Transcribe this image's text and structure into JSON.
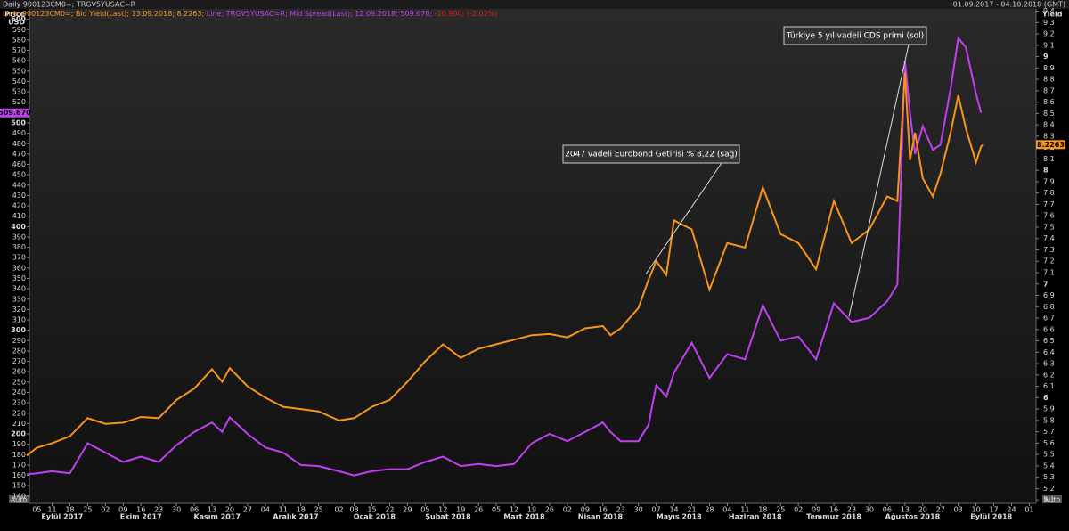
{
  "chart_data": {
    "type": "line",
    "header": "Daily 900123CM0=; TRGV5YUSAC=R",
    "range_text": "01.09.2017 - 04.10.2018 (GMT)",
    "legend_parts": [
      {
        "text": "Line; 900123CM0=; Bid Yield(Last); 13.09.2018; 8.2263; ",
        "color": "#f7941d"
      },
      {
        "text": "Line; TRGV5YUSAC=R; Mid Spread(Last); 12.09.2018; 509.670; ",
        "color": "#c040f0"
      },
      {
        "text": "-10.900; (-2.02%)",
        "color": "#e02020"
      }
    ],
    "y_label": [
      "Price",
      "USD"
    ],
    "y2_label": "Yield",
    "auto_label": "Auto",
    "annotations": [
      {
        "text": "Türkiye 5 yıl vadeli CDS primi (sol)",
        "series": 0,
        "point": 51
      },
      {
        "text": "2047 vadeli Eurobond Getirisi % 8,22 (sağ)",
        "series": 1,
        "point": 38
      }
    ],
    "xlim": [
      "2017-09-01",
      "2018-10-04"
    ],
    "x": [
      "2017-09-01",
      "2017-09-05",
      "2017-09-11",
      "2017-09-18",
      "2017-09-25",
      "2017-10-02",
      "2017-10-09",
      "2017-10-16",
      "2017-10-23",
      "2017-10-30",
      "2017-11-06",
      "2017-11-13",
      "2017-11-17",
      "2017-11-20",
      "2017-11-27",
      "2017-12-04",
      "2017-12-11",
      "2017-12-18",
      "2017-12-25",
      "2018-01-02",
      "2018-01-08",
      "2018-01-15",
      "2018-01-22",
      "2018-01-29",
      "2018-02-05",
      "2018-02-12",
      "2018-02-19",
      "2018-02-26",
      "2018-03-05",
      "2018-03-12",
      "2018-03-19",
      "2018-03-26",
      "2018-04-02",
      "2018-04-09",
      "2018-04-16",
      "2018-04-19",
      "2018-04-23",
      "2018-04-30",
      "2018-05-04",
      "2018-05-07",
      "2018-05-11",
      "2018-05-14",
      "2018-05-21",
      "2018-05-28",
      "2018-06-04",
      "2018-06-11",
      "2018-06-18",
      "2018-06-25",
      "2018-07-02",
      "2018-07-09",
      "2018-07-16",
      "2018-07-23",
      "2018-07-30",
      "2018-08-06",
      "2018-08-10",
      "2018-08-13",
      "2018-08-15",
      "2018-08-17",
      "2018-08-20",
      "2018-08-24",
      "2018-08-27",
      "2018-08-31",
      "2018-09-03",
      "2018-09-06",
      "2018-09-10",
      "2018-09-12",
      "2018-09-13"
    ],
    "series": [
      {
        "name": "TRGV5YUSAC=R",
        "color": "#c040f0",
        "last_label": "509.670",
        "values": [
          161,
          162,
          164,
          162,
          191,
          182,
          173,
          178,
          173,
          189,
          202,
          211,
          202,
          216,
          200,
          187,
          182,
          170,
          169,
          164,
          160,
          164,
          166,
          166,
          173,
          178,
          169,
          171,
          169,
          171,
          191,
          200,
          193,
          202,
          211,
          202,
          193,
          193,
          209,
          247,
          236,
          259,
          288,
          254,
          277,
          272,
          324,
          290,
          294,
          272,
          326,
          308,
          312,
          328,
          344,
          560,
          510,
          470,
          497,
          474,
          479,
          533,
          582,
          573,
          528,
          509.67,
          null
        ]
      },
      {
        "name": "900123CM0=",
        "color": "#f7941d",
        "axis": "y2",
        "last_label": "8.2263",
        "values": [
          5.49,
          5.56,
          5.6,
          5.66,
          5.82,
          5.77,
          5.78,
          5.83,
          5.82,
          5.98,
          6.08,
          6.25,
          6.14,
          6.26,
          6.1,
          6,
          5.92,
          5.9,
          5.88,
          5.8,
          5.82,
          5.92,
          5.98,
          6.14,
          6.32,
          6.47,
          6.35,
          6.43,
          6.47,
          6.51,
          6.55,
          6.56,
          6.53,
          6.61,
          6.63,
          6.55,
          6.61,
          6.79,
          7.04,
          7.2,
          7.08,
          7.56,
          7.48,
          6.95,
          7.36,
          7.32,
          7.85,
          7.44,
          7.36,
          7.13,
          7.73,
          7.36,
          7.48,
          7.77,
          7.73,
          8.86,
          8.09,
          8.33,
          7.93,
          7.77,
          7.97,
          8.33,
          8.66,
          8.37,
          8.07,
          8.21,
          8.2263
        ]
      }
    ],
    "ylim": [
      133,
      610
    ],
    "yticks": [
      140,
      150,
      160,
      170,
      180,
      190,
      200,
      210,
      220,
      230,
      240,
      250,
      260,
      270,
      280,
      290,
      300,
      310,
      320,
      330,
      340,
      350,
      360,
      370,
      380,
      390,
      400,
      410,
      420,
      430,
      440,
      450,
      460,
      470,
      480,
      490,
      500,
      510,
      520,
      530,
      540,
      550,
      560,
      570,
      580,
      590,
      600
    ],
    "y2lim": [
      5.07,
      9.42
    ],
    "y2ticks": [
      5.1,
      5.2,
      5.3,
      5.4,
      5.5,
      5.6,
      5.7,
      5.8,
      5.9,
      6,
      6.1,
      6.2,
      6.3,
      6.4,
      6.5,
      6.6,
      6.7,
      6.8,
      6.9,
      7,
      7.1,
      7.2,
      7.3,
      7.4,
      7.5,
      7.6,
      7.7,
      7.8,
      7.9,
      8,
      8.1,
      8.2,
      8.3,
      8.4,
      8.5,
      8.6,
      8.7,
      8.8,
      8.9,
      9,
      9.1,
      9.2,
      9.3,
      9.4
    ],
    "xticks": [
      {
        "value": "2017-09-05",
        "label": "05"
      },
      {
        "value": "2017-09-11",
        "label": "11"
      },
      {
        "value": "2017-09-18",
        "label": "18"
      },
      {
        "value": "2017-09-25",
        "label": "25"
      },
      {
        "value": "2017-10-02",
        "label": "02"
      },
      {
        "value": "2017-10-09",
        "label": "09"
      },
      {
        "value": "2017-10-16",
        "label": "16"
      },
      {
        "value": "2017-10-23",
        "label": "23"
      },
      {
        "value": "2017-10-30",
        "label": "30"
      },
      {
        "value": "2017-11-06",
        "label": "06"
      },
      {
        "value": "2017-11-13",
        "label": "13"
      },
      {
        "value": "2017-11-20",
        "label": "20"
      },
      {
        "value": "2017-11-27",
        "label": "27"
      },
      {
        "value": "2017-12-04",
        "label": "04"
      },
      {
        "value": "2017-12-11",
        "label": "11"
      },
      {
        "value": "2017-12-18",
        "label": "18"
      },
      {
        "value": "2017-12-25",
        "label": "25"
      },
      {
        "value": "2018-01-02",
        "label": "02"
      },
      {
        "value": "2018-01-08",
        "label": "08"
      },
      {
        "value": "2018-01-15",
        "label": "15"
      },
      {
        "value": "2018-01-22",
        "label": "22"
      },
      {
        "value": "2018-01-29",
        "label": "29"
      },
      {
        "value": "2018-02-05",
        "label": "05"
      },
      {
        "value": "2018-02-12",
        "label": "12"
      },
      {
        "value": "2018-02-19",
        "label": "19"
      },
      {
        "value": "2018-02-26",
        "label": "26"
      },
      {
        "value": "2018-03-05",
        "label": "05"
      },
      {
        "value": "2018-03-12",
        "label": "12"
      },
      {
        "value": "2018-03-19",
        "label": "19"
      },
      {
        "value": "2018-03-26",
        "label": "26"
      },
      {
        "value": "2018-04-02",
        "label": "02"
      },
      {
        "value": "2018-04-09",
        "label": "09"
      },
      {
        "value": "2018-04-16",
        "label": "16"
      },
      {
        "value": "2018-04-23",
        "label": "23"
      },
      {
        "value": "2018-04-30",
        "label": "30"
      },
      {
        "value": "2018-05-07",
        "label": "07"
      },
      {
        "value": "2018-05-14",
        "label": "14"
      },
      {
        "value": "2018-05-21",
        "label": "21"
      },
      {
        "value": "2018-05-28",
        "label": "28"
      },
      {
        "value": "2018-06-04",
        "label": "04"
      },
      {
        "value": "2018-06-11",
        "label": "11"
      },
      {
        "value": "2018-06-18",
        "label": "18"
      },
      {
        "value": "2018-06-25",
        "label": "25"
      },
      {
        "value": "2018-07-02",
        "label": "02"
      },
      {
        "value": "2018-07-09",
        "label": "09"
      },
      {
        "value": "2018-07-16",
        "label": "16"
      },
      {
        "value": "2018-07-23",
        "label": "23"
      },
      {
        "value": "2018-07-30",
        "label": "30"
      },
      {
        "value": "2018-08-06",
        "label": "06"
      },
      {
        "value": "2018-08-13",
        "label": "13"
      },
      {
        "value": "2018-08-20",
        "label": "20"
      },
      {
        "value": "2018-08-27",
        "label": "27"
      },
      {
        "value": "2018-09-03",
        "label": "03"
      },
      {
        "value": "2018-09-10",
        "label": "10"
      },
      {
        "value": "2018-09-17",
        "label": "17"
      },
      {
        "value": "2018-09-24",
        "label": "24"
      },
      {
        "value": "2018-10-01",
        "label": "01"
      }
    ],
    "months": [
      {
        "value": "2017-09-15",
        "label": "Eylül 2017"
      },
      {
        "value": "2017-10-16",
        "label": "Ekim 2017"
      },
      {
        "value": "2017-11-15",
        "label": "Kasım 2017"
      },
      {
        "value": "2017-12-16",
        "label": "Aralık 2017"
      },
      {
        "value": "2018-01-16",
        "label": "Ocak 2018"
      },
      {
        "value": "2018-02-14",
        "label": "Şubat 2018"
      },
      {
        "value": "2018-03-16",
        "label": "Mart 2018"
      },
      {
        "value": "2018-04-15",
        "label": "Nisan 2018"
      },
      {
        "value": "2018-05-16",
        "label": "Mayıs 2018"
      },
      {
        "value": "2018-06-15",
        "label": "Haziran 2018"
      },
      {
        "value": "2018-07-16",
        "label": "Temmuz 2018"
      },
      {
        "value": "2018-08-16",
        "label": "Ağustos 2018"
      },
      {
        "value": "2018-09-16",
        "label": "Eylül 2018"
      }
    ]
  }
}
